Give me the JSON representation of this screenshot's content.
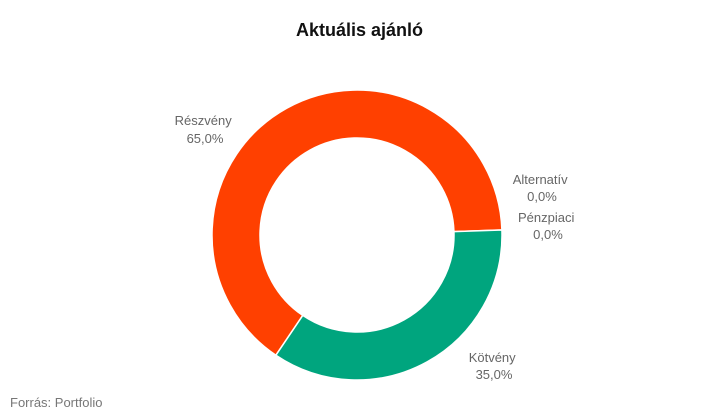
{
  "chart_data": {
    "type": "pie",
    "variant": "donut",
    "title": "Aktuális ajánló",
    "slices": [
      {
        "label": "Részvény",
        "value_label": "65,0%",
        "value": 65.0,
        "color": "#ff4000"
      },
      {
        "label": "Kötvény",
        "value_label": "35,0%",
        "value": 35.0,
        "color": "#00a57e"
      },
      {
        "label": "Pénzpiaci",
        "value_label": "0,0%",
        "value": 0.0,
        "color": "#4a90d9"
      },
      {
        "label": "Alternatív",
        "value_label": "0,0%",
        "value": 0.0,
        "color": "#f2c200"
      }
    ]
  },
  "source": "Forrás: Portfolio"
}
